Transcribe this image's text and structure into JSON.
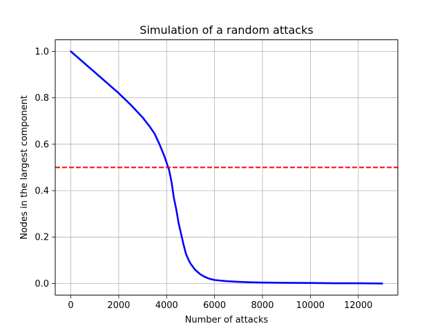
{
  "chart_data": {
    "type": "line",
    "title": "Simulation of a random attacks",
    "xlabel": "Number of attacks",
    "ylabel": "Nodes in the largest component",
    "xlim": [
      -650,
      13650
    ],
    "ylim": [
      -0.05,
      1.05
    ],
    "xticks": [
      0,
      2000,
      4000,
      6000,
      8000,
      10000,
      12000
    ],
    "xtick_labels": [
      "0",
      "2000",
      "4000",
      "6000",
      "8000",
      "10000",
      "12000"
    ],
    "yticks": [
      0.0,
      0.2,
      0.4,
      0.6,
      0.8,
      1.0
    ],
    "ytick_labels": [
      "0.0",
      "0.2",
      "0.4",
      "0.6",
      "0.8",
      "1.0"
    ],
    "grid": true,
    "series": [
      {
        "color": "#0000ff",
        "line_style": "solid",
        "x": [
          0,
          500,
          1000,
          1500,
          2000,
          2500,
          3000,
          3300,
          3500,
          3700,
          3900,
          4000,
          4100,
          4200,
          4300,
          4400,
          4500,
          4600,
          4700,
          4800,
          4900,
          5000,
          5200,
          5400,
          5600,
          5800,
          6000,
          6500,
          7000,
          7500,
          8000,
          9000,
          10000,
          11000,
          12000,
          13000
        ],
        "y": [
          1.0,
          0.955,
          0.91,
          0.865,
          0.82,
          0.77,
          0.715,
          0.675,
          0.645,
          0.6,
          0.55,
          0.52,
          0.49,
          0.44,
          0.37,
          0.32,
          0.26,
          0.215,
          0.17,
          0.13,
          0.105,
          0.085,
          0.058,
          0.04,
          0.028,
          0.02,
          0.015,
          0.01,
          0.007,
          0.005,
          0.004,
          0.003,
          0.002,
          0.001,
          0.001,
          0.0
        ]
      },
      {
        "color": "#ff0000",
        "line_style": "dashed",
        "y_constant": 0.5
      }
    ]
  }
}
